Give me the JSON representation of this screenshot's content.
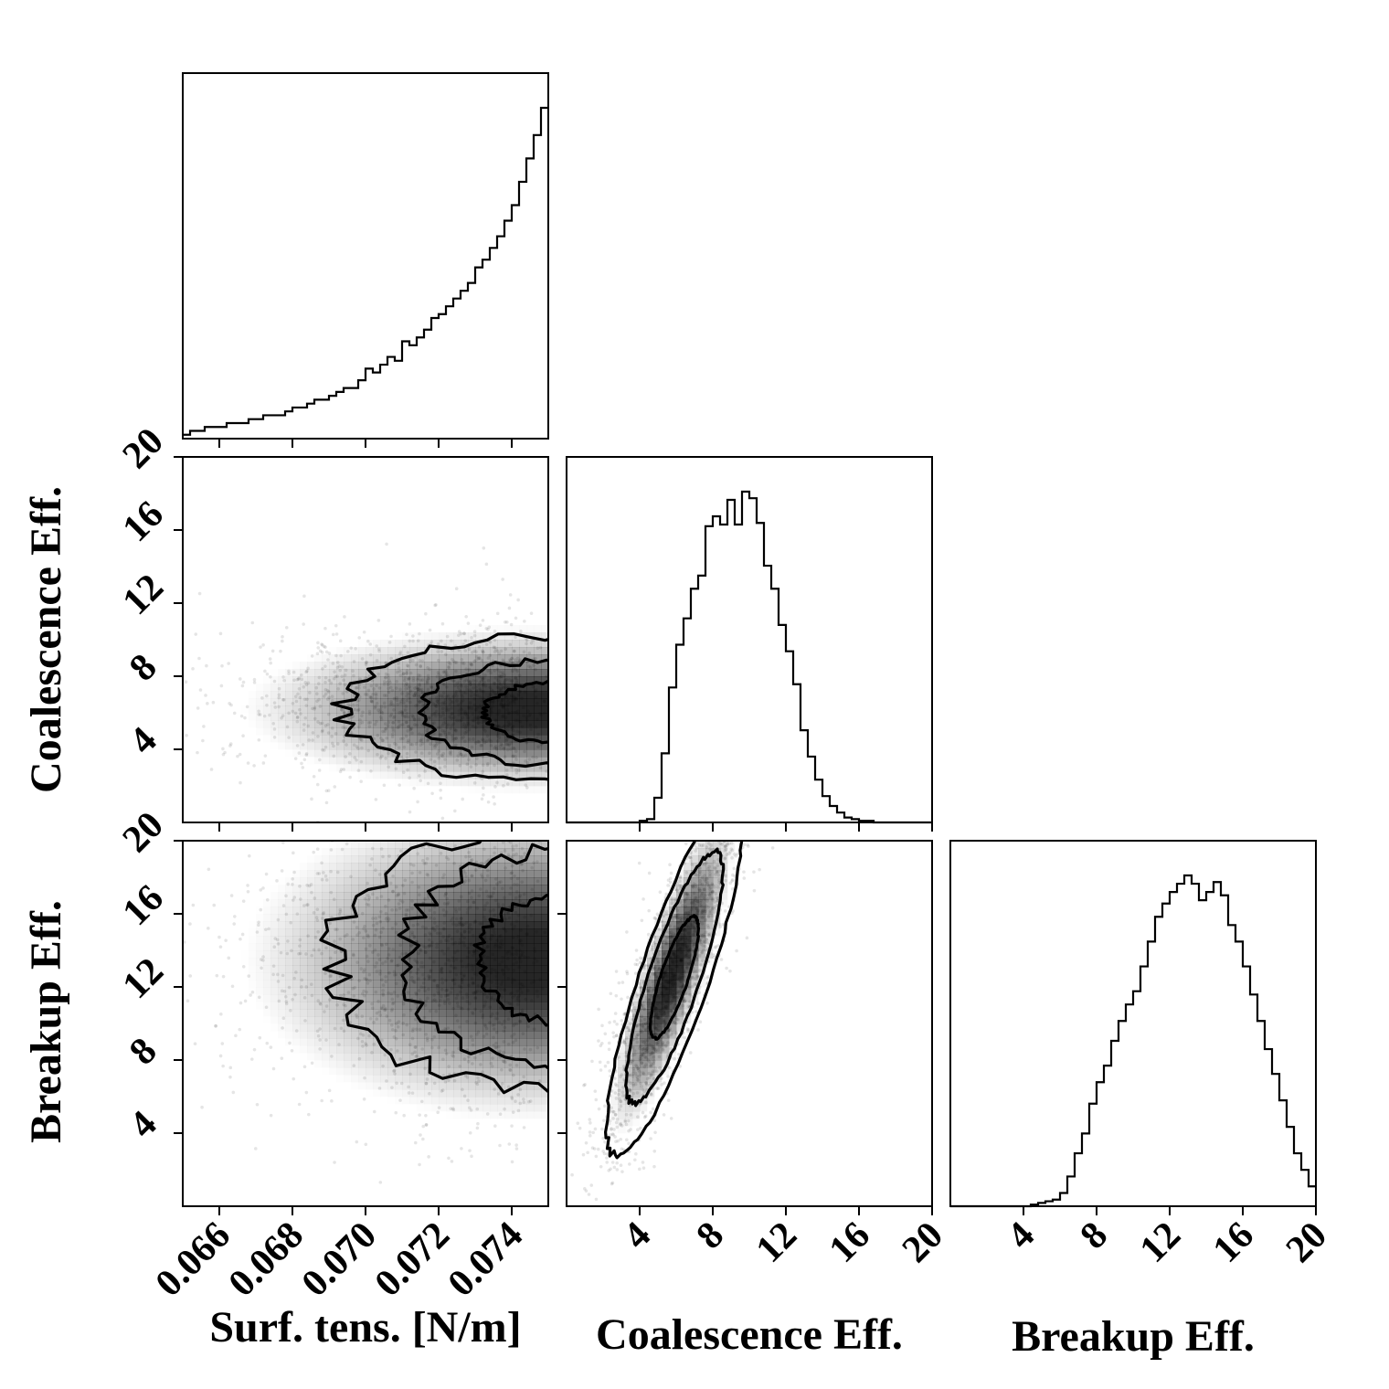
{
  "chart_data": {
    "type": "corner",
    "parameters": [
      {
        "id": "sigma",
        "label": "Surf. tens. [N/m]",
        "range": [
          0.065,
          0.075
        ],
        "ticks": [
          "0.066",
          "0.068",
          "0.070",
          "0.072",
          "0.074"
        ],
        "tick_values": [
          0.066,
          0.068,
          0.07,
          0.072,
          0.074
        ]
      },
      {
        "id": "coal",
        "label": "Coalescence Eff.",
        "range": [
          0,
          20
        ],
        "ticks": [
          "4",
          "8",
          "12",
          "16",
          "20"
        ],
        "tick_values": [
          4,
          8,
          12,
          16,
          20
        ]
      },
      {
        "id": "break",
        "label": "Breakup Eff.",
        "range": [
          0,
          20
        ],
        "ticks": [
          "4",
          "8",
          "12",
          "16",
          "20"
        ],
        "tick_values": [
          4,
          8,
          12,
          16,
          20
        ]
      }
    ],
    "marginals": {
      "sigma": {
        "bin_edges_start": 0.065,
        "bin_width": 0.0002,
        "counts": [
          1,
          2,
          2,
          3,
          3,
          3,
          4,
          4,
          4,
          5,
          5,
          6,
          6,
          6,
          7,
          8,
          8,
          9,
          10,
          10,
          11,
          12,
          13,
          13,
          15,
          18,
          17,
          19,
          21,
          20,
          25,
          24,
          26,
          28,
          31,
          32,
          34,
          36,
          38,
          40,
          44,
          46,
          49,
          52,
          56,
          60,
          66,
          72,
          78,
          85
        ]
      },
      "coal": {
        "bin_edges_start": 0.0,
        "bin_width": 0.4,
        "counts": [
          0,
          0,
          0,
          0,
          0,
          0,
          0,
          0,
          0,
          0,
          1,
          2,
          15,
          42,
          82,
          108,
          124,
          142,
          150,
          180,
          186,
          181,
          196,
          181,
          201,
          197,
          182,
          156,
          142,
          120,
          104,
          84,
          56,
          40,
          26,
          16,
          10,
          6,
          3,
          2,
          1,
          1,
          0,
          0,
          0,
          0,
          0,
          0,
          0,
          0
        ]
      },
      "break": {
        "bin_edges_start": 0.0,
        "bin_width": 0.4,
        "counts": [
          0,
          0,
          0,
          0,
          0,
          0,
          0,
          0,
          0,
          0,
          0,
          1,
          2,
          3,
          4,
          8,
          18,
          32,
          44,
          62,
          75,
          85,
          100,
          112,
          122,
          130,
          145,
          160,
          175,
          183,
          190,
          195,
          200,
          195,
          185,
          190,
          196,
          188,
          170,
          160,
          145,
          128,
          112,
          95,
          80,
          64,
          48,
          32,
          22,
          12
        ]
      }
    },
    "joint": [
      {
        "x": "sigma",
        "y": "coal",
        "mode": {
          "x": 0.0746,
          "y": 6.2
        }
      },
      {
        "x": "sigma",
        "y": "break",
        "mode": {
          "x": 0.0746,
          "y": 13.5
        }
      },
      {
        "x": "coal",
        "y": "break",
        "mode": {
          "x": 5.8,
          "y": 12.8
        }
      }
    ]
  }
}
